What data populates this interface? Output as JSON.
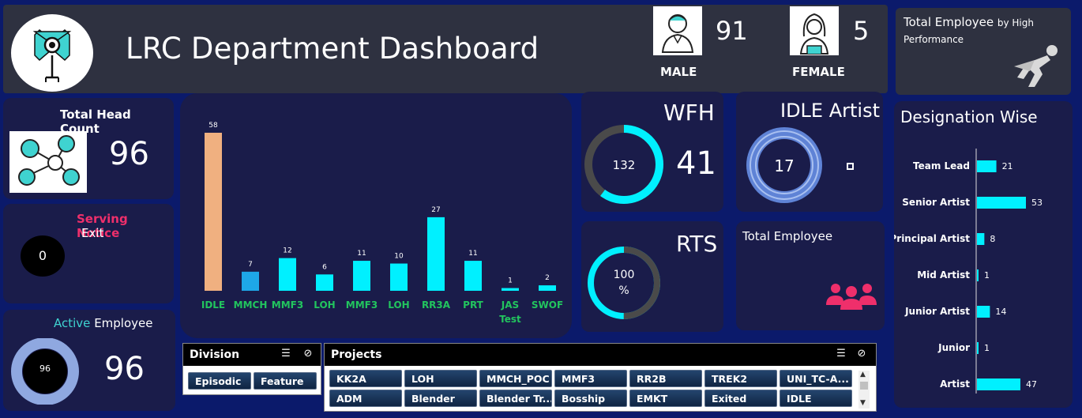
{
  "header": {
    "title": "LRC Department Dashboard",
    "male_count": "91",
    "male_label": "MALE",
    "female_count": "5",
    "female_label": "FEMALE"
  },
  "performance": {
    "title_main": "Total Employee",
    "title_small": "by High Performance"
  },
  "headcount": {
    "label": "Total Head Count",
    "value": "96"
  },
  "notice": {
    "label1": "Serving Notice",
    "label2": "Exit",
    "value": "0"
  },
  "active": {
    "label1": "Active",
    "label2": "Employee",
    "value": "96",
    "ring_value": "96"
  },
  "wfh": {
    "label": "WFH",
    "ring_value": "132",
    "value": "41"
  },
  "idle_artist": {
    "label": "IDLE Artist",
    "ring_value": "17"
  },
  "rts": {
    "label": "RTS",
    "ring_value": "100",
    "ring_unit": "%"
  },
  "total_employee_card": {
    "label": "Total Employee"
  },
  "division": {
    "title": "Division",
    "items": [
      "Episodic",
      "Feature"
    ]
  },
  "projects": {
    "title": "Projects",
    "items": [
      "KK2A",
      "LOH",
      "MMCH_POC",
      "MMF3",
      "RR2B",
      "TREK2",
      "UNI_TC-A...",
      "ADM",
      "Blender",
      "Blender Tr...",
      "Bosship",
      "EMKT",
      "Exited",
      "IDLE"
    ]
  },
  "colors": {
    "accent": "#00f0ff",
    "idle_bar": "#f0b080",
    "mmch_bar": "#1ea7e8",
    "label_green": "#22c55e",
    "pink": "#ef2f6b",
    "panel": "#1a1c4a"
  },
  "chart_data": [
    {
      "type": "bar",
      "categories": [
        "IDLE",
        "MMCH",
        "MMF3",
        "LOH",
        "MMF3",
        "LOH",
        "RR3A",
        "PRT",
        "JAS Test",
        "SWOF"
      ],
      "values": [
        58,
        7,
        12,
        6,
        11,
        10,
        27,
        11,
        1,
        2
      ]
    },
    {
      "type": "bar",
      "title": "Designation Wise",
      "categories": [
        "Team Lead",
        "Senior Artist",
        "Principal Artist",
        "Mid Artist",
        "Junior Artist",
        "Junior",
        "Artist"
      ],
      "values": [
        21,
        53,
        8,
        1,
        14,
        1,
        47
      ]
    }
  ]
}
